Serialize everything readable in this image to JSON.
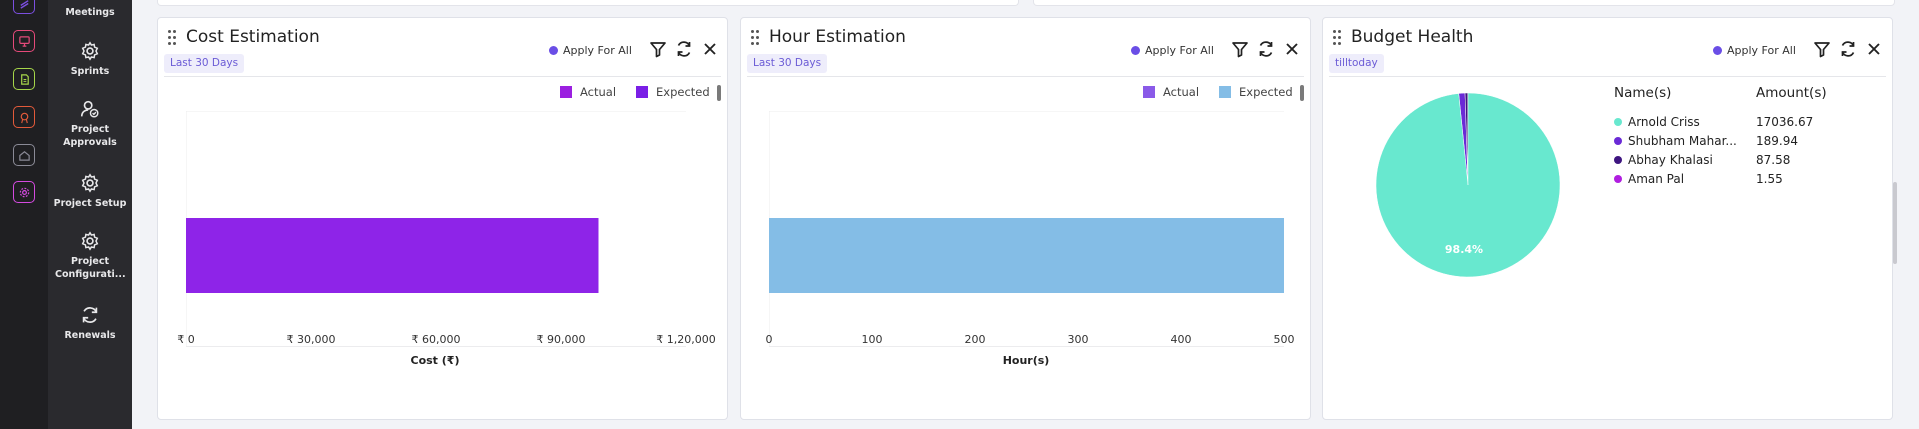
{
  "sidebar": {
    "menu": [
      {
        "label": "Meetings",
        "icon": "calendar-gear-icon"
      },
      {
        "label": "Sprints",
        "icon": "gear-icon"
      },
      {
        "label": "Project Approvals",
        "icon": "user-check-icon"
      },
      {
        "label": "Project Setup",
        "icon": "gear-icon"
      },
      {
        "label": "Project Configurati...",
        "icon": "gear-icon"
      },
      {
        "label": "Renewals",
        "icon": "refresh-icon"
      }
    ],
    "rail_colors": [
      "#7b4fe0",
      "#e64a7a",
      "#a6d64a",
      "#e25a3a",
      "#8a8a96",
      "#d44ae0"
    ]
  },
  "cost": {
    "title": "Cost Estimation",
    "range": "Last 30 Days",
    "apply": "Apply For All",
    "legend": [
      "Actual",
      "Expected"
    ]
  },
  "hour": {
    "title": "Hour Estimation",
    "range": "Last 30 Days",
    "apply": "Apply For All",
    "legend": [
      "Actual",
      "Expected"
    ]
  },
  "budget": {
    "title": "Budget Health",
    "range": "tilltoday",
    "apply": "Apply For All",
    "col_name": "Name(s)",
    "col_amount": "Amount(s)",
    "rows": [
      {
        "name": "Arnold Criss",
        "amount": "17036.67"
      },
      {
        "name": "Shubham Mahar...",
        "amount": "189.94"
      },
      {
        "name": "Abhay Khalasi",
        "amount": "87.58"
      },
      {
        "name": "Aman Pal",
        "amount": "1.55"
      }
    ],
    "pie_label": "98.4%"
  },
  "chart_data": [
    {
      "type": "bar",
      "orientation": "horizontal",
      "categories": [
        ""
      ],
      "series": [
        {
          "name": "Actual",
          "values": [
            0
          ],
          "color": "#9b1fe0"
        },
        {
          "name": "Expected",
          "values": [
            99000
          ],
          "color": "#8e24e8"
        }
      ],
      "xlabel": "Cost (₹)",
      "xlim": [
        0,
        120000
      ],
      "xticks": [
        "₹ 0",
        "₹ 30,000",
        "₹ 60,000",
        "₹ 90,000",
        "₹ 1,20,000"
      ],
      "legend": "top-right"
    },
    {
      "type": "bar",
      "orientation": "horizontal",
      "categories": [
        ""
      ],
      "series": [
        {
          "name": "Actual",
          "values": [
            0
          ],
          "color": "#8a5ae8"
        },
        {
          "name": "Expected",
          "values": [
            500
          ],
          "color": "#84bde6"
        }
      ],
      "xlabel": "Hour(s)",
      "xlim": [
        0,
        500
      ],
      "xticks": [
        "0",
        "100",
        "200",
        "300",
        "400",
        "500"
      ],
      "legend": "top-right"
    },
    {
      "type": "pie",
      "labels": [
        "Arnold Criss",
        "Shubham Mahar...",
        "Abhay Khalasi",
        "Aman Pal"
      ],
      "values": [
        17036.67,
        189.94,
        87.58,
        1.55
      ],
      "colors": [
        "#68e8cf",
        "#6a2ad6",
        "#3e1580",
        "#b01ee0"
      ],
      "slice_label": "98.4%"
    }
  ]
}
